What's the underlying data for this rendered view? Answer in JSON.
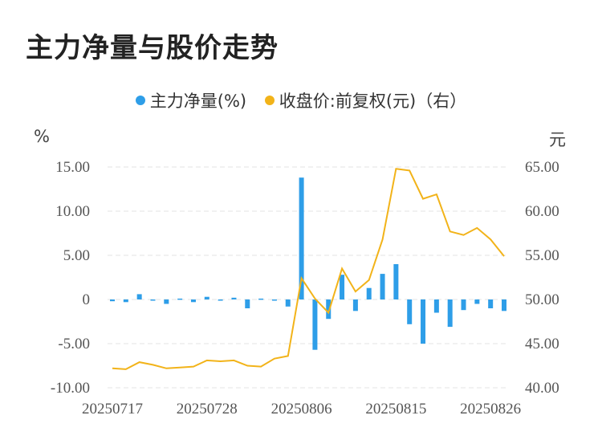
{
  "title": "主力净量与股价走势",
  "legend": {
    "net": "主力净量(%)",
    "price": "收盘价:前复权(元)（右）"
  },
  "units": {
    "left": "%",
    "right": "元"
  },
  "colors": {
    "bar": "#2e9ee8",
    "line": "#f2b319",
    "grid": "#e3e3e3"
  },
  "chart_data": {
    "type": "bar+line",
    "title": "主力净量与股价走势",
    "x_tick_labels": [
      "20250717",
      "20250728",
      "20250806",
      "20250815",
      "20250826"
    ],
    "x": [
      "20250717",
      "20250718",
      "20250721",
      "20250722",
      "20250723",
      "20250724",
      "20250725",
      "20250728",
      "20250729",
      "20250730",
      "20250731",
      "20250801",
      "20250804",
      "20250805",
      "20250806",
      "20250807",
      "20250808",
      "20250811",
      "20250812",
      "20250813",
      "20250814",
      "20250815",
      "20250818",
      "20250819",
      "20250820",
      "20250821",
      "20250822",
      "20250825",
      "20250826",
      "20250827"
    ],
    "left_axis": {
      "ticks": [
        15.0,
        10.0,
        5.0,
        0,
        -5.0,
        -10.0
      ],
      "labels": [
        "15.00",
        "10.00",
        "5.00",
        "0",
        "-5.00",
        "-10.00"
      ],
      "ylim": [
        -10,
        15
      ]
    },
    "right_axis": {
      "ticks": [
        65.0,
        60.0,
        55.0,
        50.0,
        45.0,
        40.0
      ],
      "labels": [
        "65.00",
        "60.00",
        "55.00",
        "50.00",
        "45.00",
        "40.00"
      ],
      "ylim": [
        40,
        65
      ]
    },
    "series": [
      {
        "name": "主力净量(%)",
        "type": "bar",
        "axis": "left",
        "values": [
          -0.2,
          -0.3,
          0.6,
          -0.1,
          -0.5,
          0.1,
          -0.3,
          0.3,
          -0.1,
          0.2,
          -1.0,
          0.1,
          -0.1,
          -0.8,
          13.8,
          -5.7,
          -2.2,
          2.8,
          -1.3,
          1.3,
          2.9,
          4.0,
          -2.8,
          -5.0,
          -1.5,
          -3.1,
          -1.2,
          -0.5,
          -1.0,
          -1.3
        ]
      },
      {
        "name": "收盘价:前复权(元)（右）",
        "type": "line",
        "axis": "right",
        "values": [
          42.2,
          42.1,
          42.9,
          42.6,
          42.2,
          42.3,
          42.4,
          43.1,
          43.0,
          43.1,
          42.5,
          42.4,
          43.3,
          43.6,
          52.4,
          50.1,
          48.5,
          53.5,
          50.9,
          52.2,
          56.8,
          64.8,
          64.6,
          61.4,
          61.9,
          57.7,
          57.3,
          58.1,
          56.8,
          54.9
        ]
      }
    ],
    "grid": true,
    "legend_position": "top"
  }
}
